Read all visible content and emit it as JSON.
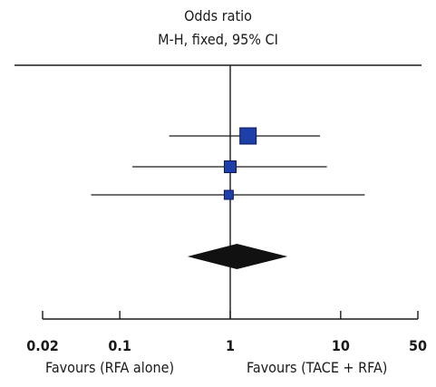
{
  "chart_data": {
    "type": "forest",
    "title": "Odds ratio",
    "subtitle": "M-H, fixed, 95% CI",
    "x_scale": "log",
    "xlim": [
      0.02,
      50
    ],
    "x_ticks": [
      0.02,
      0.1,
      1,
      10,
      50
    ],
    "x_tick_labels": [
      "0.02",
      "0.1",
      "1",
      "10",
      "50"
    ],
    "reference_line": 1,
    "left_label": "Favours (RFA alone)",
    "right_label": "Favours (TACE + RFA)",
    "studies": [
      {
        "or": 1.45,
        "ci": [
          0.28,
          6.5
        ],
        "weight": "large"
      },
      {
        "or": 1.0,
        "ci": [
          0.13,
          7.5
        ],
        "weight": "medium"
      },
      {
        "or": 0.97,
        "ci": [
          0.055,
          16.5
        ],
        "weight": "small"
      }
    ],
    "pooled": {
      "or": 1.15,
      "ci": [
        0.41,
        3.3
      ]
    },
    "colors": {
      "marker": "#1f3fa8",
      "marker_edge": "#0b1a5c",
      "diamond": "#111111",
      "line": "#1a1a1a"
    }
  }
}
